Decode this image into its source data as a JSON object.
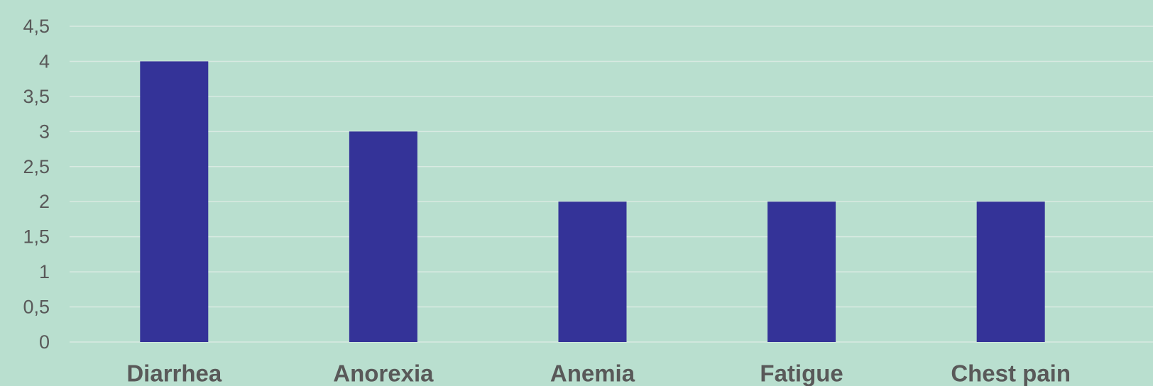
{
  "chart_data": {
    "type": "bar",
    "title": "",
    "xlabel": "",
    "ylabel": "",
    "categories": [
      "Diarrhea",
      "Anorexia",
      "Anemia",
      "Fatigue",
      "Chest pain"
    ],
    "values": [
      4,
      3,
      2,
      2,
      2
    ],
    "ylim": [
      0,
      4.5
    ],
    "ytick_step": 0.5,
    "ytick_labels": [
      "0",
      "0,5",
      "1",
      "1,5",
      "2",
      "2,5",
      "3",
      "3,5",
      "4",
      "4,5"
    ],
    "grid": true,
    "legend": "none",
    "colors": {
      "background": "#b9dfcf",
      "bar": "#343398",
      "gridline": "#d9eae2",
      "text": "#595959"
    }
  }
}
